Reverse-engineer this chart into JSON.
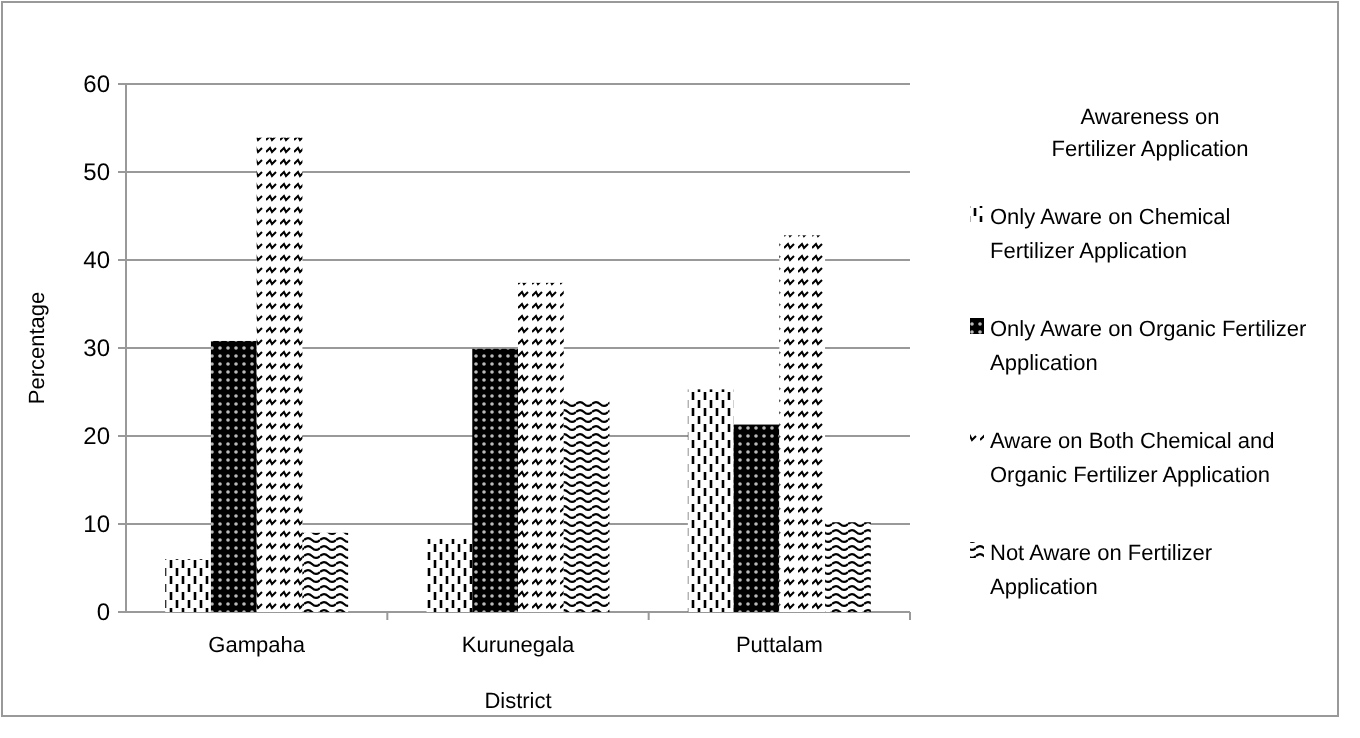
{
  "chart_data": {
    "type": "bar",
    "xlabel": "District",
    "ylabel": "Percentage",
    "legend_title": "Awareness on Fertilizer Application",
    "categories": [
      "Gampaha",
      "Kurunegala",
      "Puttalam"
    ],
    "series": [
      {
        "name": "Only Aware on Chemical Fertilizer Application",
        "color": "#000000",
        "values": [
          6,
          8.3,
          25.3
        ]
      },
      {
        "name": "Only Aware on Organic Fertilizer Application",
        "color": "#000000",
        "values": [
          30.8,
          29.9,
          21.3
        ]
      },
      {
        "name": "Aware on Both Chemical and Organic Fertilizer Application",
        "color": "#000000",
        "values": [
          53.9,
          37.4,
          42.8
        ]
      },
      {
        "name": "Not Aware on Fertilizer Application",
        "color": "#000000",
        "values": [
          9,
          24.2,
          10.2
        ]
      }
    ],
    "ylim": [
      0,
      60
    ],
    "yticks": [
      0,
      10,
      20,
      30,
      40,
      50,
      60
    ],
    "grid": "y",
    "legend": "right"
  }
}
